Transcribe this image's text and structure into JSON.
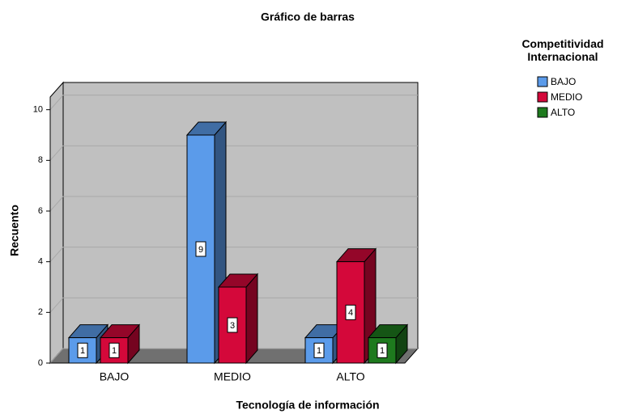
{
  "chart_data": {
    "type": "bar3d",
    "title": "Gráfico de barras",
    "xlabel": "Tecnología de información",
    "ylabel": "Recuento",
    "legend_title": "Competitividad Internacional",
    "categories": [
      "BAJO",
      "MEDIO",
      "ALTO"
    ],
    "series": [
      {
        "name": "BAJO",
        "color": "#5b9bea",
        "values": [
          1,
          9,
          1
        ]
      },
      {
        "name": "MEDIO",
        "color": "#d4083a",
        "values": [
          1,
          3,
          4
        ]
      },
      {
        "name": "ALTO",
        "color": "#1e7a1e",
        "values": [
          null,
          null,
          1
        ]
      }
    ],
    "ylim": [
      0,
      10.5
    ],
    "yticks": [
      0,
      2,
      4,
      6,
      8,
      10
    ],
    "grid": true,
    "legend": "right"
  }
}
